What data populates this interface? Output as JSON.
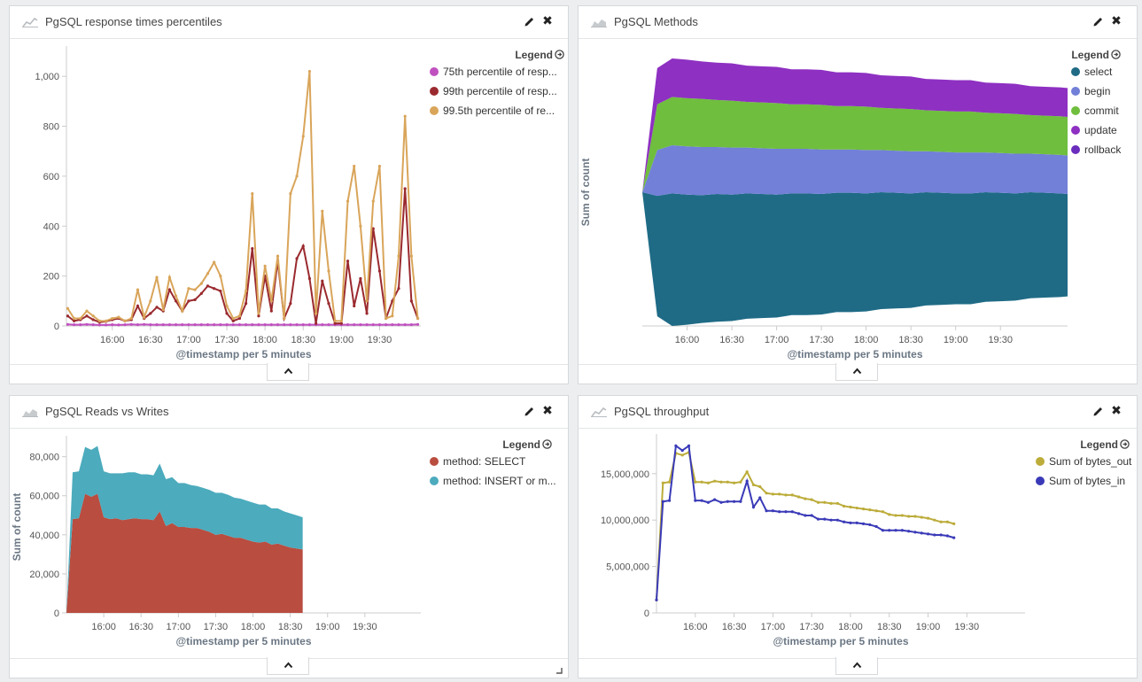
{
  "panels": [
    {
      "id": "p1",
      "title": "PgSQL response times percentiles",
      "icon": "line-chart-icon",
      "legend_title": "Legend",
      "legend": [
        {
          "label": "75th percentile of resp...",
          "color": "#c050c0"
        },
        {
          "label": "99th percentile of resp...",
          "color": "#9a2a2f"
        },
        {
          "label": "99.5th percentile of re...",
          "color": "#d9a55a"
        }
      ]
    },
    {
      "id": "p2",
      "title": "PgSQL Methods",
      "icon": "area-chart-icon",
      "legend_title": "Legend",
      "legend": [
        {
          "label": "select",
          "color": "#1f6b86"
        },
        {
          "label": "begin",
          "color": "#7280d8"
        },
        {
          "label": "commit",
          "color": "#6fbe3e"
        },
        {
          "label": "update",
          "color": "#8e30c2"
        },
        {
          "label": "rollback",
          "color": "#6a2dbd"
        }
      ]
    },
    {
      "id": "p3",
      "title": "PgSQL Reads vs Writes",
      "icon": "area-chart-icon",
      "legend_title": "Legend",
      "legend": [
        {
          "label": "method: SELECT",
          "color": "#b94d40"
        },
        {
          "label": "method: INSERT or m...",
          "color": "#4cabbd"
        }
      ]
    },
    {
      "id": "p4",
      "title": "PgSQL throughput",
      "icon": "line-chart-icon",
      "legend_title": "Legend",
      "legend": [
        {
          "label": "Sum of bytes_out",
          "color": "#bcac3a"
        },
        {
          "label": "Sum of bytes_in",
          "color": "#3a3ab8"
        }
      ]
    }
  ],
  "chart_data": [
    {
      "panel": "p1",
      "type": "line",
      "xlabel": "@timestamp per 5 minutes",
      "ylabel": "",
      "ylim": [
        0,
        1100
      ],
      "yticks": [
        0,
        200,
        400,
        600,
        800,
        1000
      ],
      "ytick_labels": [
        "0",
        "200",
        "400",
        "600",
        "800",
        "1,000"
      ],
      "xlim": [
        15.4,
        20.04
      ],
      "xticks": [
        16,
        16.5,
        17,
        17.5,
        18,
        18.5,
        19,
        19.5
      ],
      "xtick_labels": [
        "16:00",
        "16:30",
        "17:00",
        "17:30",
        "18:00",
        "18:30",
        "19:00",
        "19:30"
      ],
      "start_time": "15:25",
      "interval_minutes": 5,
      "series": [
        {
          "name": "75th percentile of resp...",
          "color": "#c050c0",
          "values": [
            6,
            5,
            5,
            6,
            5,
            4,
            4,
            5,
            4,
            5,
            6,
            5,
            6,
            5,
            5,
            5,
            5,
            5,
            5,
            5,
            5,
            5,
            5,
            5,
            5,
            5,
            5,
            5,
            5,
            5,
            5,
            5,
            5,
            5,
            5,
            5,
            5,
            5,
            5,
            5,
            5,
            5,
            5,
            5,
            5,
            5,
            5,
            5,
            5,
            5,
            5,
            5,
            5,
            5,
            5,
            6
          ]
        },
        {
          "name": "99th percentile of resp...",
          "color": "#9a2a2f",
          "values": [
            40,
            20,
            25,
            40,
            25,
            15,
            18,
            25,
            30,
            20,
            25,
            80,
            30,
            50,
            75,
            60,
            145,
            100,
            60,
            100,
            105,
            130,
            160,
            150,
            140,
            50,
            20,
            30,
            90,
            310,
            40,
            200,
            60,
            260,
            30,
            90,
            270,
            320,
            190,
            10,
            180,
            90,
            10,
            10,
            260,
            80,
            190,
            50,
            390,
            220,
            30,
            100,
            150,
            550,
            100,
            30
          ]
        },
        {
          "name": "99.5th percentile of re...",
          "color": "#d9a55a",
          "values": [
            70,
            30,
            30,
            60,
            40,
            20,
            20,
            30,
            35,
            20,
            30,
            145,
            35,
            100,
            195,
            65,
            195,
            120,
            60,
            150,
            145,
            170,
            210,
            255,
            200,
            80,
            30,
            40,
            140,
            530,
            50,
            240,
            100,
            280,
            30,
            530,
            600,
            760,
            1020,
            50,
            460,
            220,
            20,
            20,
            500,
            640,
            400,
            100,
            500,
            640,
            30,
            40,
            280,
            840,
            280,
            30
          ]
        }
      ]
    },
    {
      "panel": "p2",
      "type": "area",
      "stacked": true,
      "offset": "silhouette",
      "xlabel": "@timestamp per 5 minutes",
      "ylabel": "Sum of count",
      "xlim": [
        15.5,
        20.25
      ],
      "xtick_labels": [
        "16:00",
        "16:30",
        "17:00",
        "17:30",
        "18:00",
        "18:30",
        "19:00",
        "19:30"
      ],
      "categories_times": [
        15.5,
        15.667,
        15.833,
        16,
        16.167,
        16.333,
        16.5,
        16.667,
        16.833,
        17,
        17.167,
        17.333,
        17.5,
        17.667,
        17.833,
        18,
        18.167,
        18.333,
        18.5,
        18.667,
        18.833,
        19,
        19.167,
        19.333,
        19.5,
        19.667,
        19.833,
        20,
        20.167,
        20.25
      ],
      "series": [
        {
          "name": "select",
          "color": "#1f6b86",
          "values": [
            0,
            100,
            110,
            108,
            106,
            106,
            105,
            104,
            103,
            102,
            101,
            101,
            100,
            99,
            99,
            98,
            97,
            96,
            95,
            94,
            93,
            92,
            92,
            91,
            90,
            89,
            88,
            87,
            86,
            85
          ]
        },
        {
          "name": "begin",
          "color": "#7280d8",
          "values": [
            0,
            38,
            40,
            40,
            40,
            39,
            39,
            38,
            38,
            38,
            37,
            37,
            37,
            36,
            36,
            36,
            35,
            35,
            35,
            34,
            34,
            34,
            34,
            33,
            33,
            33,
            32,
            32,
            32,
            32
          ]
        },
        {
          "name": "commit",
          "color": "#6fbe3e",
          "values": [
            0,
            38,
            40,
            40,
            40,
            39,
            39,
            38,
            38,
            38,
            37,
            37,
            37,
            36,
            36,
            36,
            35,
            35,
            35,
            34,
            34,
            34,
            34,
            33,
            33,
            33,
            32,
            32,
            32,
            32
          ]
        },
        {
          "name": "update",
          "color": "#8e30c2",
          "values": [
            0,
            30,
            32,
            32,
            31,
            31,
            31,
            30,
            30,
            30,
            29,
            29,
            29,
            28,
            28,
            28,
            27,
            27,
            27,
            26,
            26,
            26,
            26,
            25,
            25,
            25,
            24,
            24,
            24,
            24
          ]
        },
        {
          "name": "rollback",
          "color": "#6a2dbd",
          "values": [
            0,
            0,
            0,
            0,
            0,
            0,
            0,
            0,
            0,
            0,
            0,
            0,
            0,
            0,
            0,
            0,
            0,
            0,
            0,
            0,
            0,
            0,
            0,
            0,
            0,
            0,
            0,
            0,
            0,
            0
          ]
        }
      ]
    },
    {
      "panel": "p3",
      "type": "area",
      "stacked": true,
      "xlabel": "@timestamp per 5 minutes",
      "ylabel": "Sum of count",
      "ylim": [
        0,
        88000
      ],
      "yticks": [
        0,
        20000,
        40000,
        60000,
        80000
      ],
      "ytick_labels": [
        "0",
        "20,000",
        "40,000",
        "60,000",
        "80,000"
      ],
      "xlim": [
        15.5,
        20.25
      ],
      "xticks": [
        16,
        16.5,
        17,
        17.5,
        18,
        18.5,
        19,
        19.5
      ],
      "xtick_labels": [
        "16:00",
        "16:30",
        "17:00",
        "17:30",
        "18:00",
        "18:30",
        "19:00",
        "19:30"
      ],
      "start_time": "15:30",
      "interval_minutes": 5,
      "series": [
        {
          "name": "method: SELECT",
          "color": "#b94d40",
          "values": [
            0,
            48000,
            48500,
            61000,
            59500,
            61000,
            49000,
            48000,
            48500,
            47500,
            48000,
            48500,
            48000,
            48000,
            47500,
            52000,
            44500,
            46000,
            44000,
            44000,
            43500,
            43500,
            42500,
            41500,
            40000,
            40500,
            39500,
            38500,
            38500,
            37500,
            36500,
            36000,
            36500,
            35000,
            35500,
            34500,
            33500,
            33000,
            32500
          ]
        },
        {
          "name": "method: INSERT or m...",
          "color": "#4cabbd",
          "values": [
            0,
            24000,
            24000,
            24000,
            24000,
            24500,
            23500,
            23500,
            23000,
            24000,
            24000,
            23500,
            23000,
            23000,
            23000,
            24500,
            24000,
            23500,
            22500,
            22500,
            22000,
            21500,
            21500,
            21500,
            21500,
            21000,
            21000,
            20500,
            20000,
            20000,
            20000,
            19500,
            19000,
            18500,
            18000,
            17500,
            17500,
            17000,
            16500
          ]
        }
      ]
    },
    {
      "panel": "p4",
      "type": "line",
      "xlabel": "@timestamp per 5 minutes",
      "ylabel": "",
      "ylim": [
        0,
        18700000
      ],
      "yticks": [
        0,
        5000000,
        10000000,
        15000000
      ],
      "ytick_labels": [
        "0",
        "5,000,000",
        "10,000,000",
        "15,000,000"
      ],
      "xlim": [
        15.5,
        20.25
      ],
      "xticks": [
        16,
        16.5,
        17,
        17.5,
        18,
        18.5,
        19,
        19.5
      ],
      "xtick_labels": [
        "16:00",
        "16:30",
        "17:00",
        "17:30",
        "18:00",
        "18:30",
        "19:00",
        "19:30"
      ],
      "start_time": "15:30",
      "interval_minutes": 5,
      "series": [
        {
          "name": "Sum of bytes_out",
          "color": "#bcac3a",
          "values": [
            1400000,
            14000000,
            14100000,
            17200000,
            17000000,
            17300000,
            14100000,
            14100000,
            14000000,
            14200000,
            14100000,
            14100000,
            14000000,
            14100000,
            15200000,
            13800000,
            13600000,
            12900000,
            12800000,
            12800000,
            12700000,
            12700000,
            12500000,
            12300000,
            12200000,
            11900000,
            11900000,
            11800000,
            11800000,
            11500000,
            11400000,
            11300000,
            11200000,
            11100000,
            11000000,
            10900000,
            10600000,
            10500000,
            10500000,
            10400000,
            10400000,
            10300000,
            10200000,
            10000000,
            9800000,
            9800000,
            9600000
          ]
        },
        {
          "name": "Sum of bytes_in",
          "color": "#3a3ab8",
          "values": [
            1400000,
            12000000,
            12100000,
            18000000,
            17500000,
            18000000,
            12100000,
            12100000,
            11900000,
            12200000,
            11900000,
            12000000,
            12000000,
            12000000,
            14200000,
            11400000,
            12400000,
            11000000,
            11000000,
            10900000,
            10900000,
            10900000,
            10700000,
            10500000,
            10500000,
            10100000,
            10100000,
            10000000,
            10000000,
            9800000,
            9700000,
            9700000,
            9600000,
            9500000,
            9300000,
            8900000,
            8900000,
            8900000,
            8900000,
            8800000,
            8700000,
            8600000,
            8500000,
            8400000,
            8400000,
            8300000,
            8100000
          ]
        }
      ]
    }
  ]
}
